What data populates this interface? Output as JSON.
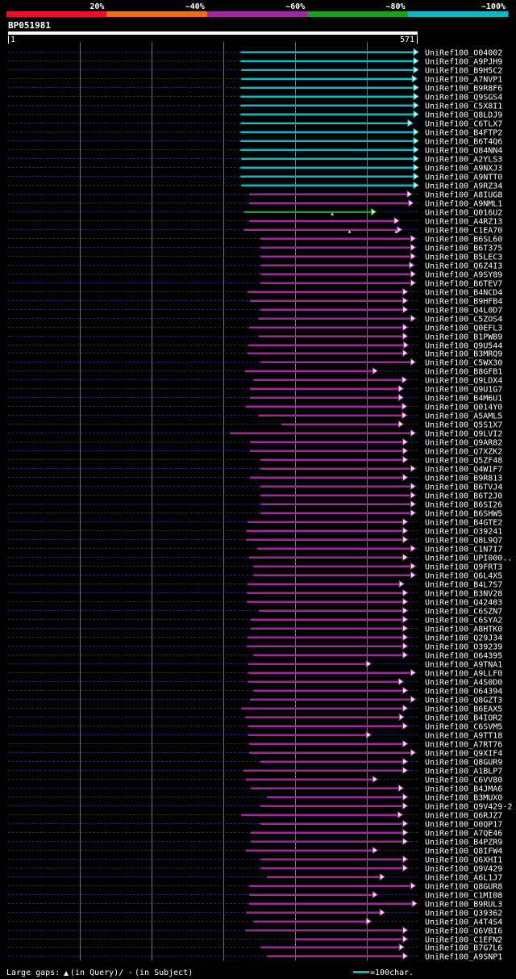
{
  "chart_data": {
    "type": "alignment-overview",
    "query_id": "BP051981",
    "query_start": "1",
    "query_end": "571",
    "query_length": 571,
    "identity_scale": [
      {
        "label": "20%",
        "color": "#e8102c"
      },
      {
        "label": "~40%",
        "color": "#e8701a"
      },
      {
        "label": "~60%",
        "color": "#a0289c"
      },
      {
        "label": "~80%",
        "color": "#1ca01c"
      },
      {
        "label": "~100%",
        "color": "#10b8c4"
      }
    ],
    "hits": [
      {
        "name": "UniRef100_O04002",
        "start": 324,
        "end": 571,
        "cls": 4,
        "qgaps": []
      },
      {
        "name": "UniRef100_A9PJH9",
        "start": 324,
        "end": 571,
        "cls": 4,
        "qgaps": []
      },
      {
        "name": "UniRef100_B9H5C2",
        "start": 325,
        "end": 571,
        "cls": 4,
        "qgaps": []
      },
      {
        "name": "UniRef100_A7NVP1",
        "start": 325,
        "end": 569,
        "cls": 4,
        "qgaps": []
      },
      {
        "name": "UniRef100_B9R8F6",
        "start": 324,
        "end": 571,
        "cls": 4,
        "qgaps": []
      },
      {
        "name": "UniRef100_Q9SGS4",
        "start": 324,
        "end": 571,
        "cls": 4,
        "qgaps": []
      },
      {
        "name": "UniRef100_C5X8I1",
        "start": 324,
        "end": 571,
        "cls": 4,
        "qgaps": []
      },
      {
        "name": "UniRef100_Q8LDJ9",
        "start": 324,
        "end": 571,
        "cls": 4,
        "qgaps": []
      },
      {
        "name": "UniRef100_C6TLX7",
        "start": 324,
        "end": 563,
        "cls": 4,
        "qgaps": []
      },
      {
        "name": "UniRef100_B4FTP2",
        "start": 324,
        "end": 571,
        "cls": 4,
        "qgaps": []
      },
      {
        "name": "UniRef100_B6T4Q6",
        "start": 324,
        "end": 571,
        "cls": 4,
        "qgaps": []
      },
      {
        "name": "UniRef100_Q84NN4",
        "start": 324,
        "end": 571,
        "cls": 4,
        "qgaps": []
      },
      {
        "name": "UniRef100_A2YLS3",
        "start": 325,
        "end": 571,
        "cls": 4,
        "qgaps": []
      },
      {
        "name": "UniRef100_A9NXJ3",
        "start": 324,
        "end": 571,
        "cls": 4,
        "qgaps": []
      },
      {
        "name": "UniRef100_A9NTT0",
        "start": 324,
        "end": 571,
        "cls": 4,
        "qgaps": []
      },
      {
        "name": "UniRef100_A9RZ34",
        "start": 325,
        "end": 571,
        "cls": 4,
        "qgaps": []
      },
      {
        "name": "UniRef100_A8IUG8",
        "start": 336,
        "end": 562,
        "cls": 2,
        "qgaps": []
      },
      {
        "name": "UniRef100_A9NML1",
        "start": 336,
        "end": 564,
        "cls": 2,
        "qgaps": []
      },
      {
        "name": "UniRef100_Q016U2",
        "start": 329,
        "end": 512,
        "cls": 3,
        "qgaps": [
          452
        ]
      },
      {
        "name": "UniRef100_A4RZ13",
        "start": 336,
        "end": 544,
        "cls": 2,
        "qgaps": []
      },
      {
        "name": "UniRef100_C1EA70",
        "start": 329,
        "end": 548,
        "cls": 2,
        "qgaps": [
          476,
          541
        ]
      },
      {
        "name": "UniRef100_B6SL60",
        "start": 352,
        "end": 567,
        "cls": 2,
        "qgaps": []
      },
      {
        "name": "UniRef100_B6T375",
        "start": 352,
        "end": 567,
        "cls": 2,
        "qgaps": []
      },
      {
        "name": "UniRef100_B5LEC3",
        "start": 352,
        "end": 567,
        "cls": 2,
        "qgaps": []
      },
      {
        "name": "UniRef100_Q6Z4I3",
        "start": 352,
        "end": 565,
        "cls": 2,
        "qgaps": []
      },
      {
        "name": "UniRef100_A9SY89",
        "start": 352,
        "end": 567,
        "cls": 2,
        "qgaps": []
      },
      {
        "name": "UniRef100_B6TEV7",
        "start": 352,
        "end": 567,
        "cls": 2,
        "qgaps": []
      },
      {
        "name": "UniRef100_B4NCD4",
        "start": 334,
        "end": 556,
        "cls": 2,
        "qgaps": []
      },
      {
        "name": "UniRef100_B9HFB4",
        "start": 337,
        "end": 556,
        "cls": 2,
        "qgaps": []
      },
      {
        "name": "UniRef100_Q4L0D7",
        "start": 352,
        "end": 556,
        "cls": 2,
        "qgaps": []
      },
      {
        "name": "UniRef100_C5ZOS4",
        "start": 349,
        "end": 567,
        "cls": 2,
        "qgaps": []
      },
      {
        "name": "UniRef100_Q0EFL3",
        "start": 336,
        "end": 556,
        "cls": 2,
        "qgaps": []
      },
      {
        "name": "UniRef100_B1PWB9",
        "start": 349,
        "end": 556,
        "cls": 2,
        "qgaps": []
      },
      {
        "name": "UniRef100_Q9U544",
        "start": 335,
        "end": 557,
        "cls": 2,
        "qgaps": []
      },
      {
        "name": "UniRef100_B3MRQ9",
        "start": 334,
        "end": 556,
        "cls": 2,
        "qgaps": []
      },
      {
        "name": "UniRef100_C5WX30",
        "start": 352,
        "end": 567,
        "cls": 2,
        "qgaps": []
      },
      {
        "name": "UniRef100_B8GFB1",
        "start": 330,
        "end": 514,
        "cls": 2,
        "qgaps": []
      },
      {
        "name": "UniRef100_Q9LDX4",
        "start": 342,
        "end": 555,
        "cls": 2,
        "qgaps": []
      },
      {
        "name": "UniRef100_Q9U1G7",
        "start": 337,
        "end": 550,
        "cls": 2,
        "qgaps": []
      },
      {
        "name": "UniRef100_B4M6U1",
        "start": 337,
        "end": 550,
        "cls": 2,
        "qgaps": []
      },
      {
        "name": "UniRef100_Q014Y0",
        "start": 331,
        "end": 555,
        "cls": 2,
        "qgaps": []
      },
      {
        "name": "UniRef100_A5AML5",
        "start": 349,
        "end": 555,
        "cls": 2,
        "qgaps": []
      },
      {
        "name": "UniRef100_Q5S1X7",
        "start": 381,
        "end": 550,
        "cls": 2,
        "qgaps": []
      },
      {
        "name": "UniRef100_Q9LVI2",
        "start": 309,
        "end": 567,
        "cls": 2,
        "qgaps": []
      },
      {
        "name": "UniRef100_Q9AR82",
        "start": 337,
        "end": 556,
        "cls": 2,
        "qgaps": []
      },
      {
        "name": "UniRef100_Q7XZK2",
        "start": 337,
        "end": 556,
        "cls": 2,
        "qgaps": []
      },
      {
        "name": "UniRef100_Q5ZF48",
        "start": 352,
        "end": 556,
        "cls": 2,
        "qgaps": []
      },
      {
        "name": "UniRef100_Q4W1F7",
        "start": 352,
        "end": 567,
        "cls": 2,
        "qgaps": []
      },
      {
        "name": "UniRef100_B9R813",
        "start": 337,
        "end": 556,
        "cls": 2,
        "qgaps": []
      },
      {
        "name": "UniRef100_B6TVJ4",
        "start": 352,
        "end": 567,
        "cls": 2,
        "qgaps": []
      },
      {
        "name": "UniRef100_B6T2J0",
        "start": 352,
        "end": 567,
        "cls": 2,
        "qgaps": []
      },
      {
        "name": "UniRef100_B6SI26",
        "start": 352,
        "end": 567,
        "cls": 2,
        "qgaps": []
      },
      {
        "name": "UniRef100_B6SHW5",
        "start": 352,
        "end": 567,
        "cls": 2,
        "qgaps": []
      },
      {
        "name": "UniRef100_B4GTE2",
        "start": 334,
        "end": 556,
        "cls": 2,
        "qgaps": []
      },
      {
        "name": "UniRef100_O39241",
        "start": 332,
        "end": 556,
        "cls": 2,
        "qgaps": []
      },
      {
        "name": "UniRef100_Q8L9Q7",
        "start": 332,
        "end": 556,
        "cls": 2,
        "qgaps": []
      },
      {
        "name": "UniRef100_C1N7I7",
        "start": 347,
        "end": 567,
        "cls": 2,
        "qgaps": []
      },
      {
        "name": "UniRef100_UPI000..",
        "start": 336,
        "end": 556,
        "cls": 2,
        "qgaps": []
      },
      {
        "name": "UniRef100_Q9FRT3",
        "start": 342,
        "end": 567,
        "cls": 2,
        "qgaps": []
      },
      {
        "name": "UniRef100_Q6L4X5",
        "start": 342,
        "end": 567,
        "cls": 2,
        "qgaps": []
      },
      {
        "name": "UniRef100_B4L7S7",
        "start": 334,
        "end": 551,
        "cls": 2,
        "qgaps": []
      },
      {
        "name": "UniRef100_B3NV28",
        "start": 333,
        "end": 556,
        "cls": 2,
        "qgaps": []
      },
      {
        "name": "UniRef100_Q42403",
        "start": 333,
        "end": 556,
        "cls": 2,
        "qgaps": []
      },
      {
        "name": "UniRef100_C6SZN7",
        "start": 350,
        "end": 556,
        "cls": 2,
        "qgaps": []
      },
      {
        "name": "UniRef100_C6SYA2",
        "start": 338,
        "end": 556,
        "cls": 2,
        "qgaps": []
      },
      {
        "name": "UniRef100_A8HTK0",
        "start": 338,
        "end": 556,
        "cls": 2,
        "qgaps": []
      },
      {
        "name": "UniRef100_Q29J34",
        "start": 334,
        "end": 556,
        "cls": 2,
        "qgaps": []
      },
      {
        "name": "UniRef100_O39239",
        "start": 333,
        "end": 556,
        "cls": 2,
        "qgaps": []
      },
      {
        "name": "UniRef100_O64395",
        "start": 342,
        "end": 556,
        "cls": 2,
        "qgaps": []
      },
      {
        "name": "UniRef100_A9TNA1",
        "start": 335,
        "end": 505,
        "cls": 2,
        "qgaps": []
      },
      {
        "name": "UniRef100_A9LLF0",
        "start": 335,
        "end": 567,
        "cls": 2,
        "qgaps": []
      },
      {
        "name": "UniRef100_A4S0D0",
        "start": 335,
        "end": 550,
        "cls": 2,
        "qgaps": []
      },
      {
        "name": "UniRef100_O64394",
        "start": 342,
        "end": 556,
        "cls": 2,
        "qgaps": []
      },
      {
        "name": "UniRef100_Q8GZT3",
        "start": 337,
        "end": 567,
        "cls": 2,
        "qgaps": []
      },
      {
        "name": "UniRef100_B6EAX5",
        "start": 325,
        "end": 556,
        "cls": 2,
        "qgaps": []
      },
      {
        "name": "UniRef100_B4IOR2",
        "start": 331,
        "end": 551,
        "cls": 2,
        "qgaps": []
      },
      {
        "name": "UniRef100_C6SVM5",
        "start": 335,
        "end": 556,
        "cls": 2,
        "qgaps": []
      },
      {
        "name": "UniRef100_A9TT18",
        "start": 335,
        "end": 505,
        "cls": 2,
        "qgaps": []
      },
      {
        "name": "UniRef100_A7RT76",
        "start": 336,
        "end": 556,
        "cls": 2,
        "qgaps": []
      },
      {
        "name": "UniRef100_Q9XIF4",
        "start": 336,
        "end": 567,
        "cls": 2,
        "qgaps": []
      },
      {
        "name": "UniRef100_Q8GUR9",
        "start": 352,
        "end": 556,
        "cls": 2,
        "qgaps": []
      },
      {
        "name": "UniRef100_A1BLP7",
        "start": 328,
        "end": 556,
        "cls": 2,
        "qgaps": []
      },
      {
        "name": "UniRef100_C6VV80",
        "start": 331,
        "end": 514,
        "cls": 2,
        "qgaps": []
      },
      {
        "name": "UniRef100_B4JMA6",
        "start": 338,
        "end": 550,
        "cls": 2,
        "qgaps": []
      },
      {
        "name": "UniRef100_B3MUX0",
        "start": 361,
        "end": 556,
        "cls": 2,
        "qgaps": []
      },
      {
        "name": "UniRef100_Q9V429-2",
        "start": 352,
        "end": 556,
        "cls": 2,
        "qgaps": []
      },
      {
        "name": "UniRef100_Q6RJZ7",
        "start": 325,
        "end": 549,
        "cls": 2,
        "qgaps": []
      },
      {
        "name": "UniRef100_O0QP17",
        "start": 352,
        "end": 556,
        "cls": 2,
        "qgaps": []
      },
      {
        "name": "UniRef100_A7QE46",
        "start": 338,
        "end": 556,
        "cls": 2,
        "qgaps": []
      },
      {
        "name": "UniRef100_B4PZR9",
        "start": 338,
        "end": 556,
        "cls": 2,
        "qgaps": []
      },
      {
        "name": "UniRef100_Q8IFW4",
        "start": 331,
        "end": 514,
        "cls": 2,
        "qgaps": []
      },
      {
        "name": "UniRef100_Q6XHI1",
        "start": 352,
        "end": 556,
        "cls": 2,
        "qgaps": []
      },
      {
        "name": "UniRef100_Q9V429",
        "start": 352,
        "end": 556,
        "cls": 2,
        "qgaps": []
      },
      {
        "name": "UniRef100_A6L1J7",
        "start": 361,
        "end": 524,
        "cls": 2,
        "qgaps": []
      },
      {
        "name": "UniRef100_Q8GUR8",
        "start": 336,
        "end": 567,
        "cls": 2,
        "qgaps": []
      },
      {
        "name": "UniRef100_C1MI08",
        "start": 336,
        "end": 514,
        "cls": 2,
        "qgaps": []
      },
      {
        "name": "UniRef100_B9RUL3",
        "start": 336,
        "end": 569,
        "cls": 2,
        "qgaps": []
      },
      {
        "name": "UniRef100_Q39362",
        "start": 332,
        "end": 524,
        "cls": 2,
        "qgaps": []
      },
      {
        "name": "UniRef100_A4T4S4",
        "start": 342,
        "end": 505,
        "cls": 2,
        "qgaps": []
      },
      {
        "name": "UniRef100_Q6VBI6",
        "start": 331,
        "end": 556,
        "cls": 2,
        "qgaps": []
      },
      {
        "name": "UniRef100_C1EFN2",
        "start": 399,
        "end": 556,
        "cls": 2,
        "qgaps": []
      },
      {
        "name": "UniRef100_B7G7L6",
        "start": 352,
        "end": 551,
        "cls": 2,
        "qgaps": []
      },
      {
        "name": "UniRef100_A9SNP1",
        "start": 361,
        "end": 556,
        "cls": 2,
        "qgaps": []
      }
    ],
    "legend": {
      "gaps_text": "Large gaps:",
      "gaps_query": "(in Query)/",
      "gaps_dash": "-",
      "gaps_subject": "(in Subject)",
      "scale_text": "=100char."
    },
    "grid": true
  }
}
